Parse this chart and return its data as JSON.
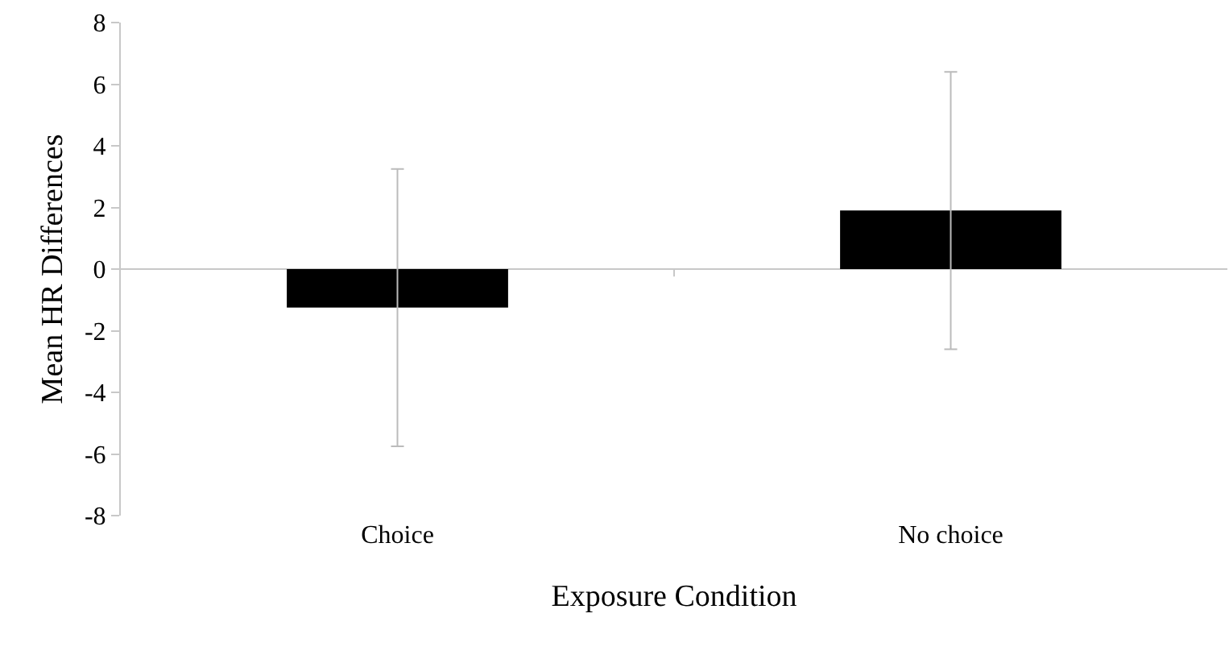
{
  "chart_data": {
    "type": "bar",
    "xlabel": "Exposure Condition",
    "ylabel": "Mean HR Differences",
    "categories": [
      "Choice",
      "No choice"
    ],
    "values": [
      -1.25,
      1.9
    ],
    "errors": [
      4.5,
      4.5
    ],
    "color": "#000000",
    "ylim": [
      -8,
      8
    ],
    "yticks": [
      -8,
      -6,
      -4,
      -2,
      0,
      2,
      4,
      6,
      8
    ]
  }
}
